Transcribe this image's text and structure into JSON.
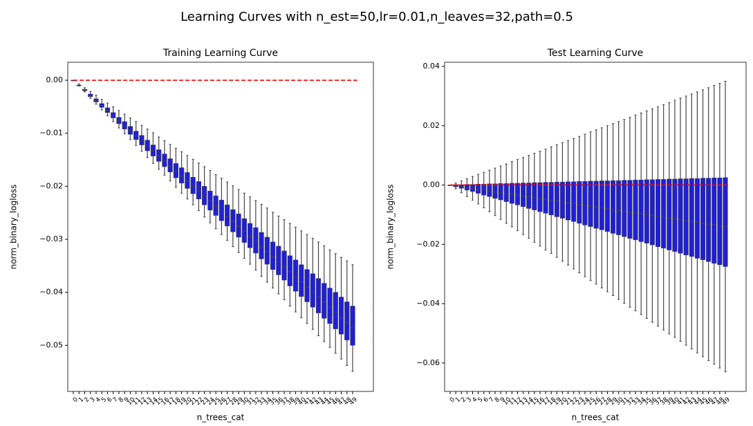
{
  "title": "Learning Curves with n_est=50,lr=0.01,n_leaves=32,path=0.5",
  "chart_data": [
    {
      "type": "box",
      "title": "Training Learning Curve",
      "xlabel": "n_trees_cat",
      "ylabel": "norm_binary_logloss",
      "categories": [
        "0",
        "1",
        "2",
        "3",
        "4",
        "5",
        "6",
        "7",
        "8",
        "9",
        "10",
        "11",
        "12",
        "13",
        "14",
        "15",
        "16",
        "17",
        "18",
        "19",
        "20",
        "21",
        "22",
        "23",
        "24",
        "25",
        "26",
        "27",
        "28",
        "29",
        "30",
        "31",
        "32",
        "33",
        "34",
        "35",
        "36",
        "37",
        "38",
        "39",
        "40",
        "41",
        "42",
        "43",
        "44",
        "45",
        "46",
        "47",
        "48",
        "49"
      ],
      "boxes": {
        "whislo": [
          0,
          -0.0011,
          -0.0022,
          -0.0034,
          -0.0045,
          -0.0056,
          -0.0067,
          -0.0078,
          -0.009,
          -0.0101,
          -0.0112,
          -0.0123,
          -0.0134,
          -0.0146,
          -0.0157,
          -0.0168,
          -0.0179,
          -0.019,
          -0.0202,
          -0.0213,
          -0.0224,
          -0.0235,
          -0.0246,
          -0.0258,
          -0.0269,
          -0.028,
          -0.0291,
          -0.0302,
          -0.0314,
          -0.0325,
          -0.0336,
          -0.0347,
          -0.0358,
          -0.037,
          -0.0381,
          -0.0392,
          -0.0403,
          -0.0414,
          -0.0426,
          -0.0437,
          -0.0448,
          -0.0459,
          -0.047,
          -0.0482,
          -0.0493,
          -0.0504,
          -0.0515,
          -0.0526,
          -0.0538,
          -0.0549
        ],
        "q1": [
          0,
          -0.001,
          -0.002,
          -0.0031,
          -0.0041,
          -0.0051,
          -0.0061,
          -0.0071,
          -0.0082,
          -0.0092,
          -0.0102,
          -0.0112,
          -0.0122,
          -0.0133,
          -0.0143,
          -0.0153,
          -0.0163,
          -0.0173,
          -0.0184,
          -0.0194,
          -0.0204,
          -0.0214,
          -0.0224,
          -0.0235,
          -0.0245,
          -0.0255,
          -0.0265,
          -0.0275,
          -0.0286,
          -0.0296,
          -0.0306,
          -0.0316,
          -0.0326,
          -0.0337,
          -0.0347,
          -0.0357,
          -0.0367,
          -0.0377,
          -0.0388,
          -0.0398,
          -0.0408,
          -0.0418,
          -0.0428,
          -0.0439,
          -0.0449,
          -0.0459,
          -0.0469,
          -0.0479,
          -0.049,
          -0.05
        ],
        "med": [
          0,
          -0.001,
          -0.0019,
          -0.0029,
          -0.0038,
          -0.0048,
          -0.0057,
          -0.0067,
          -0.0076,
          -0.0086,
          -0.0095,
          -0.0105,
          -0.0114,
          -0.0124,
          -0.0133,
          -0.0143,
          -0.0152,
          -0.0162,
          -0.0171,
          -0.0181,
          -0.019,
          -0.02,
          -0.0209,
          -0.0219,
          -0.0228,
          -0.0238,
          -0.0247,
          -0.0257,
          -0.0266,
          -0.0276,
          -0.0285,
          -0.0295,
          -0.0304,
          -0.0314,
          -0.0323,
          -0.0333,
          -0.0342,
          -0.0352,
          -0.0361,
          -0.0371,
          -0.038,
          -0.039,
          -0.0399,
          -0.0409,
          -0.0418,
          -0.0428,
          -0.0437,
          -0.0447,
          -0.0456,
          -0.0466
        ],
        "q3": [
          0,
          -0.0009,
          -0.0017,
          -0.0026,
          -0.0035,
          -0.0044,
          -0.0052,
          -0.0061,
          -0.007,
          -0.0078,
          -0.0087,
          -0.0096,
          -0.0104,
          -0.0113,
          -0.0122,
          -0.0131,
          -0.0139,
          -0.0148,
          -0.0157,
          -0.0165,
          -0.0174,
          -0.0183,
          -0.0191,
          -0.02,
          -0.0209,
          -0.0218,
          -0.0226,
          -0.0235,
          -0.0244,
          -0.0252,
          -0.0261,
          -0.027,
          -0.0278,
          -0.0287,
          -0.0296,
          -0.0305,
          -0.0313,
          -0.0322,
          -0.0331,
          -0.0339,
          -0.0348,
          -0.0357,
          -0.0365,
          -0.0374,
          -0.0383,
          -0.0392,
          -0.04,
          -0.0409,
          -0.0418,
          -0.0426
        ],
        "whishi": [
          0,
          -0.0007,
          -0.0014,
          -0.0021,
          -0.0028,
          -0.0036,
          -0.0043,
          -0.005,
          -0.0057,
          -0.0064,
          -0.0071,
          -0.0078,
          -0.0085,
          -0.0092,
          -0.0099,
          -0.0107,
          -0.0114,
          -0.0121,
          -0.0128,
          -0.0135,
          -0.0142,
          -0.0149,
          -0.0156,
          -0.0163,
          -0.017,
          -0.0178,
          -0.0185,
          -0.0192,
          -0.0199,
          -0.0206,
          -0.0213,
          -0.022,
          -0.0227,
          -0.0234,
          -0.0241,
          -0.0249,
          -0.0256,
          -0.0263,
          -0.027,
          -0.0277,
          -0.0284,
          -0.0291,
          -0.0298,
          -0.0305,
          -0.0312,
          -0.032,
          -0.0327,
          -0.0334,
          -0.0341,
          -0.0348
        ]
      },
      "color": "#1f1fd6",
      "whisker_color": "#444444",
      "ylim": [
        -0.0587,
        0.0034
      ],
      "yticks": [
        {
          "value": 0,
          "label": "0.00"
        },
        {
          "value": -0.01,
          "label": "−0.01"
        },
        {
          "value": -0.02,
          "label": "−0.02"
        },
        {
          "value": -0.03,
          "label": "−0.03"
        },
        {
          "value": -0.04,
          "label": "−0.04"
        },
        {
          "value": -0.05,
          "label": "−0.05"
        }
      ],
      "hline": {
        "value": 0,
        "color": "#ff0000"
      }
    },
    {
      "type": "box",
      "title": "Test Learning Curve",
      "xlabel": "n_trees_cat",
      "ylabel": "norm_binary_logloss",
      "categories": [
        "0",
        "1",
        "2",
        "3",
        "4",
        "5",
        "6",
        "7",
        "8",
        "9",
        "10",
        "11",
        "12",
        "13",
        "14",
        "15",
        "16",
        "17",
        "18",
        "19",
        "20",
        "21",
        "22",
        "23",
        "24",
        "25",
        "26",
        "27",
        "28",
        "29",
        "30",
        "31",
        "32",
        "33",
        "34",
        "35",
        "36",
        "37",
        "38",
        "39",
        "40",
        "41",
        "42",
        "43",
        "44",
        "45",
        "46",
        "47",
        "48",
        "49"
      ],
      "boxes": {
        "whislo": [
          0,
          -0.0013,
          -0.0026,
          -0.0039,
          -0.0051,
          -0.0064,
          -0.0077,
          -0.009,
          -0.0103,
          -0.0116,
          -0.0129,
          -0.0141,
          -0.0154,
          -0.0167,
          -0.018,
          -0.0193,
          -0.0206,
          -0.0219,
          -0.0231,
          -0.0244,
          -0.0257,
          -0.027,
          -0.0283,
          -0.0296,
          -0.0309,
          -0.0322,
          -0.0334,
          -0.0347,
          -0.036,
          -0.0373,
          -0.0386,
          -0.0399,
          -0.0412,
          -0.0424,
          -0.0437,
          -0.045,
          -0.0463,
          -0.0476,
          -0.0489,
          -0.0502,
          -0.0514,
          -0.0527,
          -0.054,
          -0.0553,
          -0.0566,
          -0.0579,
          -0.0592,
          -0.0604,
          -0.0617,
          -0.063
        ],
        "q1": [
          0,
          -0.0006,
          -0.0011,
          -0.0017,
          -0.0022,
          -0.0028,
          -0.0034,
          -0.0039,
          -0.0045,
          -0.005,
          -0.0056,
          -0.0062,
          -0.0067,
          -0.0073,
          -0.0079,
          -0.0084,
          -0.009,
          -0.0095,
          -0.0101,
          -0.0107,
          -0.0112,
          -0.0118,
          -0.0123,
          -0.0129,
          -0.0135,
          -0.014,
          -0.0146,
          -0.0151,
          -0.0157,
          -0.0163,
          -0.0168,
          -0.0174,
          -0.018,
          -0.0185,
          -0.0191,
          -0.0196,
          -0.0202,
          -0.0208,
          -0.0213,
          -0.0219,
          -0.0224,
          -0.023,
          -0.0236,
          -0.0241,
          -0.0247,
          -0.0252,
          -0.0258,
          -0.0264,
          -0.0269,
          -0.0275
        ],
        "med": [
          0,
          -0.0003,
          -0.0006,
          -0.0009,
          -0.0011,
          -0.0014,
          -0.0017,
          -0.002,
          -0.0023,
          -0.0026,
          -0.0029,
          -0.0031,
          -0.0034,
          -0.0037,
          -0.004,
          -0.0043,
          -0.0046,
          -0.0049,
          -0.0051,
          -0.0054,
          -0.0057,
          -0.006,
          -0.0063,
          -0.0066,
          -0.0069,
          -0.0072,
          -0.0074,
          -0.0077,
          -0.008,
          -0.0083,
          -0.0086,
          -0.0089,
          -0.0092,
          -0.0094,
          -0.0097,
          -0.01,
          -0.0103,
          -0.0106,
          -0.0109,
          -0.0112,
          -0.0114,
          -0.0117,
          -0.012,
          -0.0123,
          -0.0126,
          -0.0129,
          -0.0132,
          -0.0134,
          -0.0137,
          -0.014
        ],
        "q3": [
          0,
          0.0001,
          0.0001,
          0.0002,
          0.0002,
          0.0003,
          0.0003,
          0.0004,
          0.0004,
          0.0005,
          0.0005,
          0.0006,
          0.0006,
          0.0007,
          0.0007,
          0.0008,
          0.0008,
          0.0009,
          0.0009,
          0.001,
          0.001,
          0.0011,
          0.0011,
          0.0012,
          0.0012,
          0.0013,
          0.0013,
          0.0014,
          0.0014,
          0.0015,
          0.0015,
          0.0016,
          0.0016,
          0.0017,
          0.0017,
          0.0018,
          0.0018,
          0.0019,
          0.0019,
          0.002,
          0.002,
          0.0021,
          0.0021,
          0.0022,
          0.0022,
          0.0023,
          0.0023,
          0.0024,
          0.0024,
          0.0025
        ],
        "whishi": [
          0,
          0.0007,
          0.0014,
          0.0021,
          0.0029,
          0.0036,
          0.0043,
          0.005,
          0.0057,
          0.0064,
          0.0071,
          0.0079,
          0.0086,
          0.0093,
          0.01,
          0.0107,
          0.0114,
          0.0121,
          0.0129,
          0.0136,
          0.0143,
          0.015,
          0.0157,
          0.0164,
          0.0171,
          0.0179,
          0.0186,
          0.0193,
          0.02,
          0.0207,
          0.0214,
          0.0221,
          0.0228,
          0.0236,
          0.0243,
          0.025,
          0.0257,
          0.0264,
          0.0271,
          0.0278,
          0.0286,
          0.0293,
          0.03,
          0.0307,
          0.0314,
          0.0321,
          0.0328,
          0.0336,
          0.0343,
          0.035
        ]
      },
      "color": "#1f1fd6",
      "whisker_color": "#444444",
      "ylim": [
        -0.0696,
        0.0414
      ],
      "yticks": [
        {
          "value": 0.04,
          "label": "0.04"
        },
        {
          "value": 0.02,
          "label": "0.02"
        },
        {
          "value": 0,
          "label": "0.00"
        },
        {
          "value": -0.02,
          "label": "−0.02"
        },
        {
          "value": -0.04,
          "label": "−0.04"
        },
        {
          "value": -0.06,
          "label": "−0.06"
        }
      ],
      "hline": {
        "value": 0,
        "color": "#ff0000"
      }
    }
  ]
}
